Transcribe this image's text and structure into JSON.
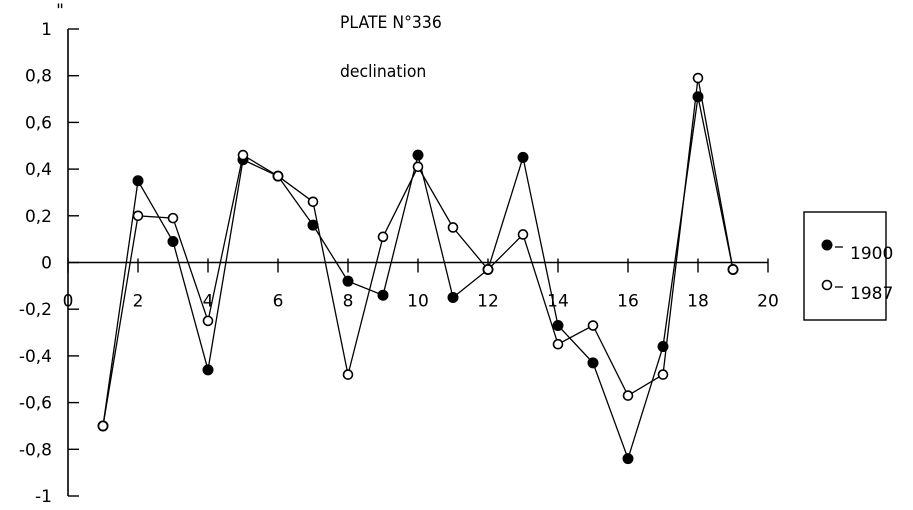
{
  "chart_data": {
    "type": "line",
    "title": "PLATE N°336",
    "subtitle": "declination",
    "y_unit": "\"",
    "xlim": [
      0,
      20
    ],
    "ylim": [
      -1,
      1
    ],
    "x_ticks": [
      0,
      2,
      4,
      6,
      8,
      10,
      12,
      14,
      16,
      18,
      20
    ],
    "x_tick_labels": [
      "0",
      "2",
      "4",
      "6",
      "8",
      "10",
      "12",
      "14",
      "16",
      "18",
      "20"
    ],
    "y_ticks": [
      1,
      0.8,
      0.6,
      0.4,
      0.2,
      0,
      -0.2,
      -0.4,
      -0.6,
      -0.8,
      -1
    ],
    "y_tick_labels": [
      "1",
      "0,8",
      "0,6",
      "0,4",
      "0,2",
      "0",
      "-0,2",
      "-0,4",
      "-0,6",
      "-0,8",
      "-1"
    ],
    "grid": false,
    "legend_position": "right",
    "series": [
      {
        "name": "1900",
        "marker": "filled-circle",
        "x": [
          1,
          2,
          3,
          4,
          5,
          6,
          7,
          8,
          9,
          10,
          11,
          12,
          13,
          14,
          15,
          16,
          17,
          18,
          19
        ],
        "y": [
          -0.7,
          0.35,
          0.09,
          -0.46,
          0.44,
          0.37,
          0.16,
          -0.08,
          -0.14,
          0.46,
          -0.15,
          -0.03,
          0.45,
          -0.27,
          -0.43,
          -0.84,
          -0.36,
          0.71,
          -0.03
        ]
      },
      {
        "name": "1987",
        "marker": "open-circle",
        "x": [
          1,
          2,
          3,
          4,
          5,
          6,
          7,
          8,
          9,
          10,
          11,
          12,
          13,
          14,
          15,
          16,
          17,
          18,
          19
        ],
        "y": [
          -0.7,
          0.2,
          0.19,
          -0.25,
          0.46,
          0.37,
          0.26,
          -0.48,
          0.11,
          0.41,
          0.15,
          -0.03,
          0.12,
          -0.35,
          -0.27,
          -0.57,
          -0.48,
          0.79,
          -0.03
        ]
      }
    ]
  }
}
